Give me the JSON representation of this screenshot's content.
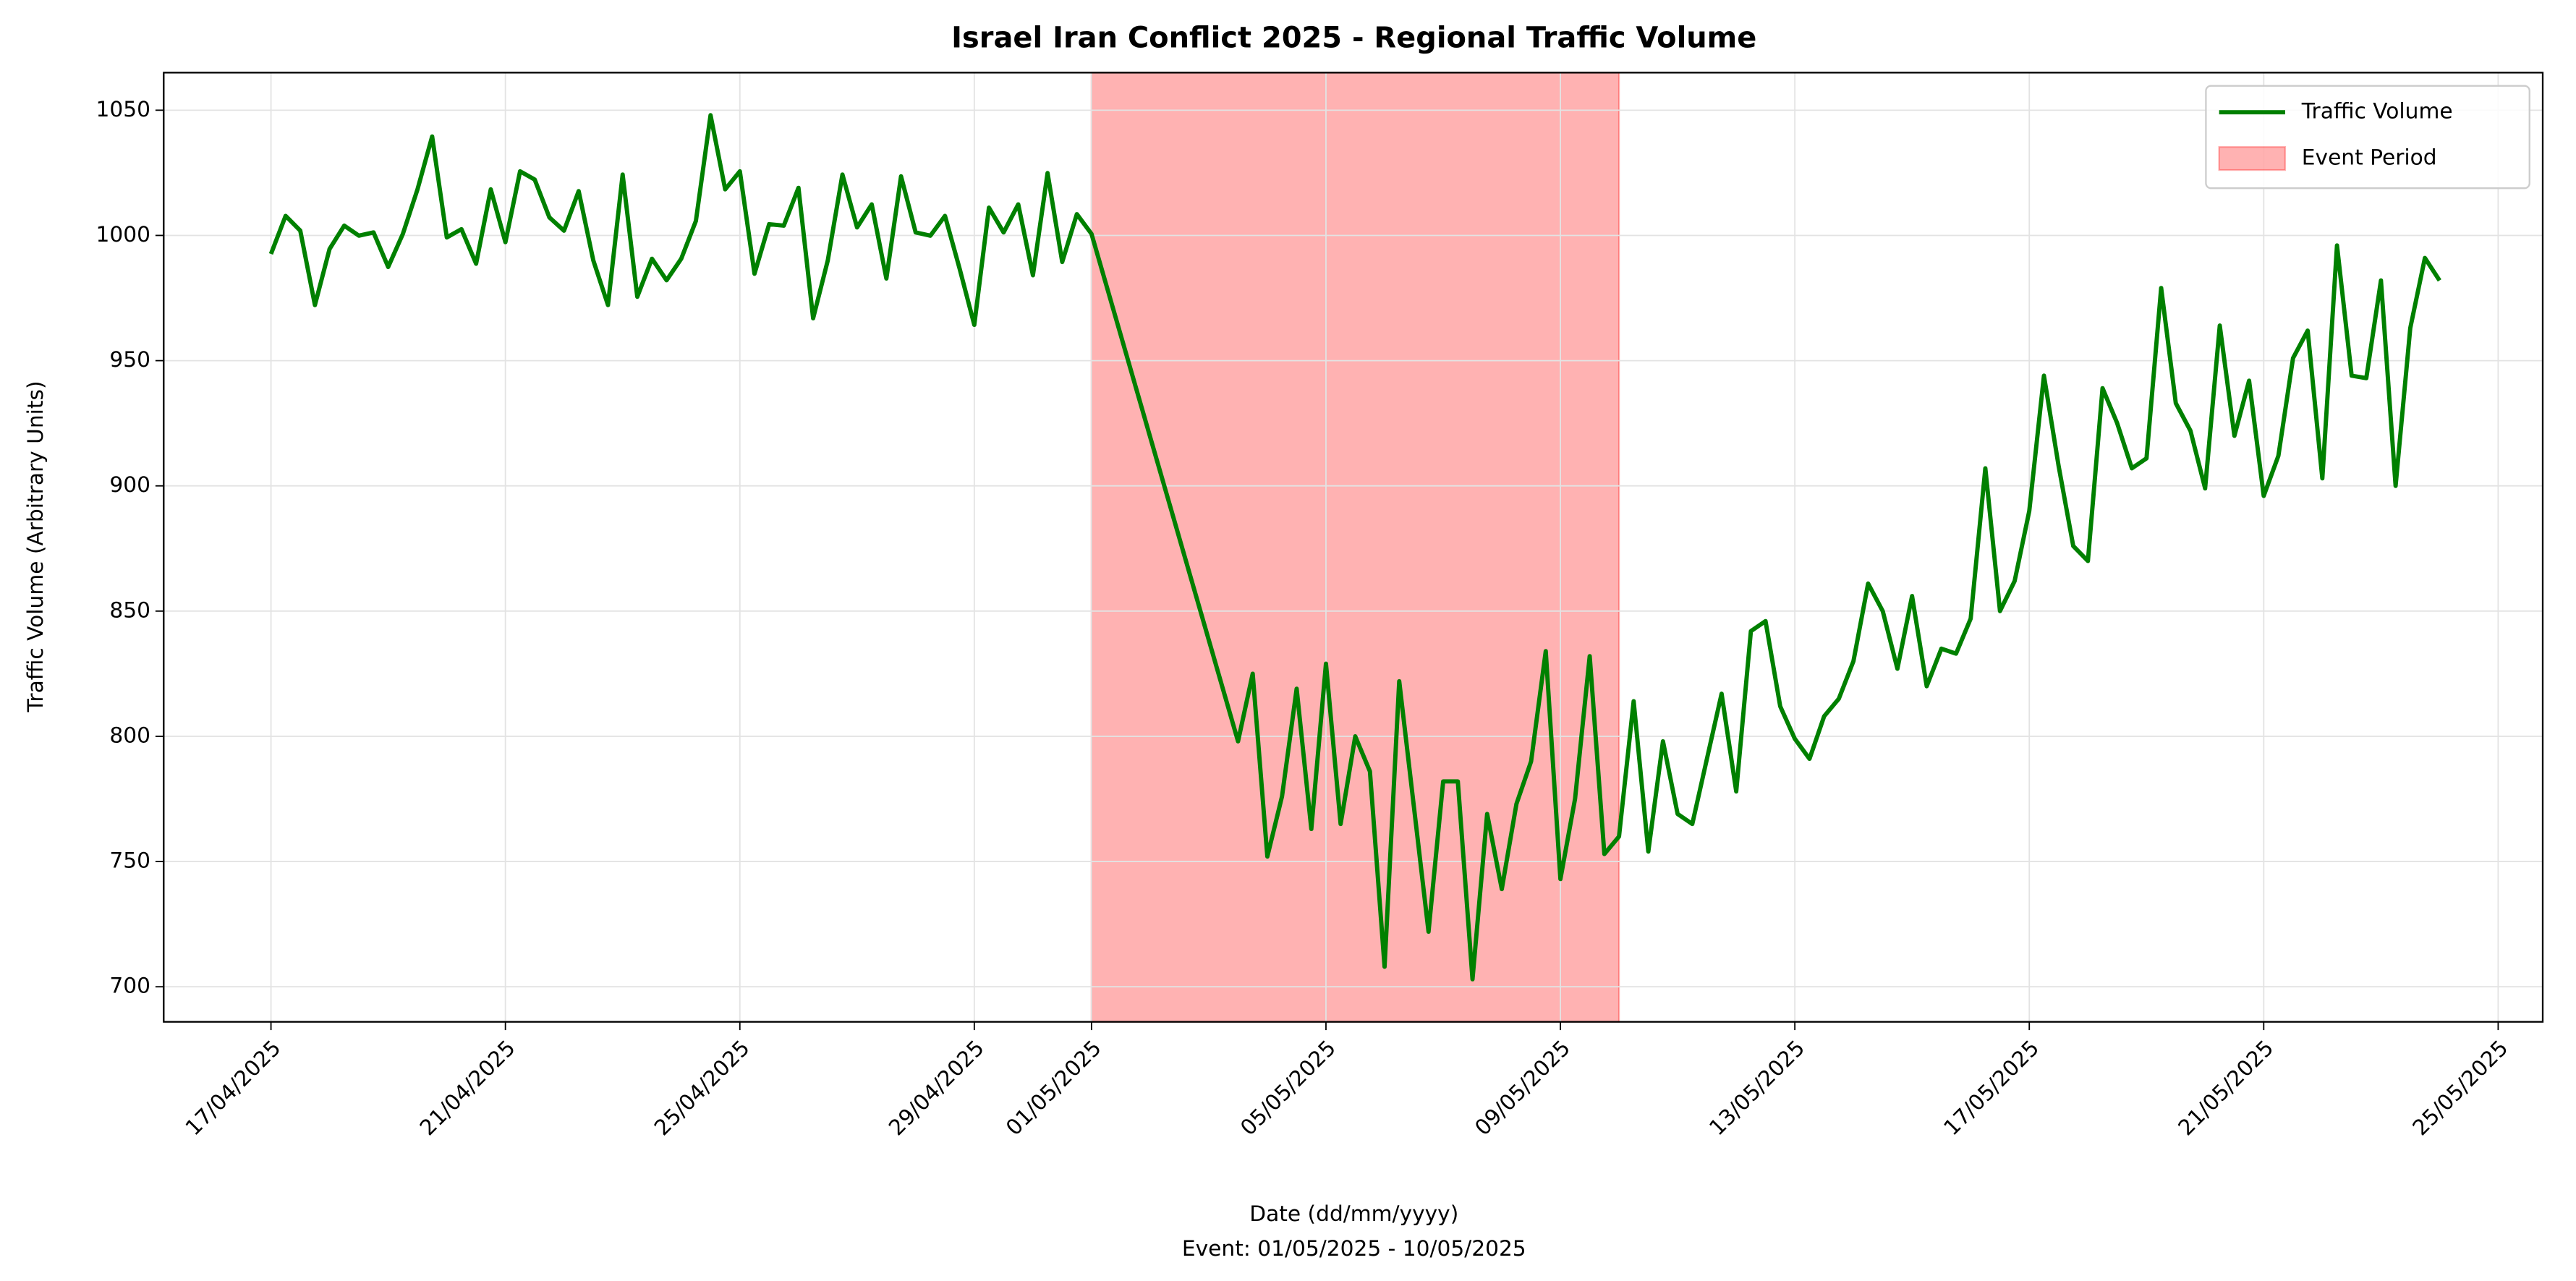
{
  "chart_data": {
    "type": "line",
    "title": "Israel Iran Conflict 2025 - Regional Traffic Volume",
    "xlabel": "Date (dd/mm/yyyy)",
    "xlabel_note": "Event: 01/05/2025 - 10/05/2025",
    "ylabel": "Traffic Volume (Arbitrary Units)",
    "xlim": [
      -1.83,
      38.76
    ],
    "ylim": [
      686,
      1065
    ],
    "xticks": [
      {
        "value": 0,
        "label": "17/04/2025"
      },
      {
        "value": 4,
        "label": "21/04/2025"
      },
      {
        "value": 8,
        "label": "25/04/2025"
      },
      {
        "value": 12,
        "label": "29/04/2025"
      },
      {
        "value": 14,
        "label": "01/05/2025"
      },
      {
        "value": 18,
        "label": "05/05/2025"
      },
      {
        "value": 22,
        "label": "09/05/2025"
      },
      {
        "value": 26,
        "label": "13/05/2025"
      },
      {
        "value": 30,
        "label": "17/05/2025"
      },
      {
        "value": 34,
        "label": "21/05/2025"
      },
      {
        "value": 38,
        "label": "25/05/2025"
      }
    ],
    "yticks": [
      700,
      750,
      800,
      850,
      900,
      950,
      1000,
      1050
    ],
    "grid": true,
    "legend": "upper right",
    "event": {
      "label": "Event Period",
      "start": 14,
      "end": 23,
      "color": "#ff0000"
    },
    "series": [
      {
        "name": "Traffic Volume",
        "color": "#008000",
        "x": [
          0,
          0.25,
          0.5,
          0.75,
          1,
          1.25,
          1.5,
          1.75,
          2,
          2.25,
          2.5,
          2.75,
          3,
          3.25,
          3.5,
          3.75,
          4,
          4.25,
          4.5,
          4.75,
          5,
          5.25,
          5.5,
          5.75,
          6,
          6.25,
          6.5,
          6.75,
          7,
          7.25,
          7.5,
          7.75,
          8,
          8.25,
          8.5,
          8.75,
          9,
          9.25,
          9.5,
          9.75,
          10,
          10.25,
          10.5,
          10.75,
          11,
          11.25,
          11.5,
          11.75,
          12,
          12.25,
          12.5,
          12.75,
          13,
          13.25,
          13.5,
          13.75,
          14,
          16.5,
          16.75,
          17,
          17.25,
          17.5,
          17.75,
          18,
          18.25,
          18.5,
          18.75,
          19,
          19.25,
          19.5,
          19.75,
          20,
          20.25,
          20.5,
          20.75,
          21,
          21.25,
          21.5,
          21.75,
          22,
          22.25,
          22.5,
          22.75,
          23,
          23.25,
          23.5,
          23.75,
          24,
          24.25,
          24.5,
          24.75,
          25,
          25.25,
          25.5,
          25.75,
          26,
          26.25,
          26.5,
          26.75,
          27,
          27.25,
          27.5,
          27.75,
          28,
          28.25,
          28.5,
          28.75,
          29,
          29.25,
          29.5,
          29.75,
          30,
          30.25,
          30.5,
          30.75,
          31,
          31.25,
          31.5,
          31.75,
          32,
          32.25,
          32.5,
          32.75,
          33,
          33.25,
          33.5,
          33.75,
          34,
          34.25,
          34.5,
          34.75,
          35,
          35.25,
          35.5,
          35.75,
          36,
          36.25,
          36.5,
          36.75,
          37
        ],
        "values": [
          992.6,
          1007.8,
          1001.9,
          972.2,
          994.6,
          1003.9,
          999.9,
          1001.2,
          987.4,
          1000.6,
          1018.4,
          1039.5,
          999.2,
          1002.5,
          988.7,
          1018.4,
          997.3,
          1025.6,
          1022.3,
          1007.2,
          1001.9,
          1017.7,
          990.0,
          972.2,
          1024.3,
          975.5,
          990.7,
          982.1,
          990.7,
          1005.8,
          1048.0,
          1018.4,
          1025.6,
          984.7,
          1004.5,
          1003.9,
          1019.0,
          966.9,
          990.0,
          1024.3,
          1003.2,
          1012.4,
          982.8,
          1023.6,
          1001.2,
          999.9,
          1007.8,
          986.7,
          964.3,
          1011.1,
          1001.2,
          1012.4,
          984.1,
          1024.9,
          989.4,
          1008.5,
          1000.6,
          798,
          825,
          752,
          776,
          819,
          763,
          829,
          765,
          800,
          786,
          708,
          822,
          772,
          722,
          782,
          782,
          703,
          769,
          739,
          773,
          790,
          834,
          743,
          775,
          832,
          753,
          760,
          814,
          754,
          798,
          769,
          765,
          791,
          817,
          778,
          842,
          846,
          812,
          799,
          791,
          808,
          815,
          830,
          861,
          850,
          827,
          856,
          820,
          835,
          833,
          847,
          907,
          850,
          862,
          890,
          944,
          908,
          876,
          870,
          939,
          925,
          907,
          911,
          979,
          933,
          922,
          899,
          964,
          920,
          942,
          896,
          912,
          951,
          962,
          903,
          996,
          944,
          943,
          982,
          900,
          963,
          991,
          982
        ]
      }
    ]
  }
}
